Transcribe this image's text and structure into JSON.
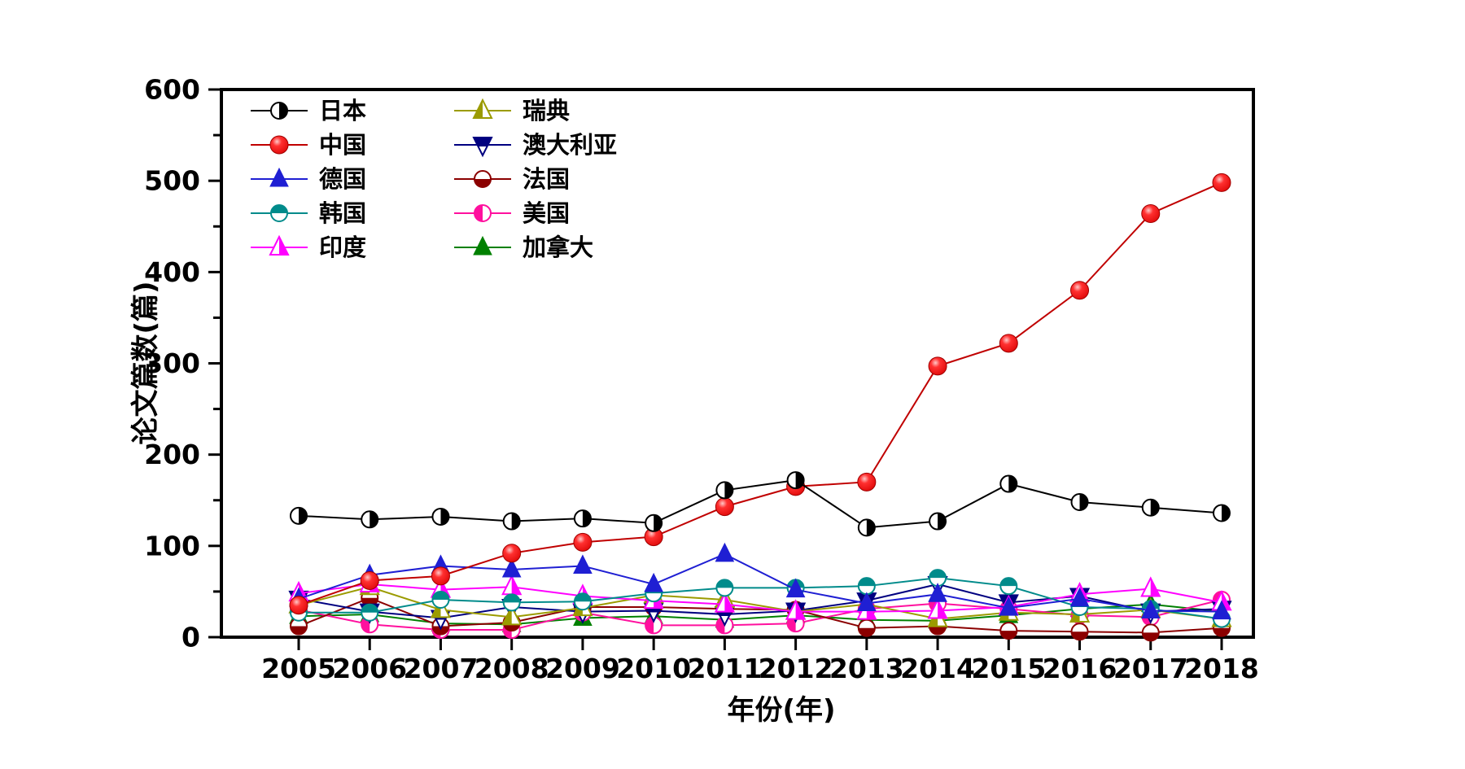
{
  "chart_data": {
    "type": "line",
    "title": "",
    "xlabel": "年份(年)",
    "ylabel": "论文篇数(篇)",
    "x_years": [
      2005,
      2006,
      2007,
      2008,
      2009,
      2010,
      2011,
      2012,
      2013,
      2014,
      2015,
      2016,
      2017,
      2018
    ],
    "y_ticks": [
      0,
      100,
      200,
      300,
      400,
      500,
      600
    ],
    "y_minor_step": 50,
    "ylim": [
      0,
      600
    ],
    "grid": false,
    "legend_position": "top-left-inside, two columns, no frame",
    "series": [
      {
        "name": "日本",
        "key": "japan",
        "marker": "circle-right-half",
        "line_color": "#000000",
        "fill_color": "#000000",
        "values": [
          133,
          129,
          132,
          127,
          130,
          125,
          161,
          172,
          120,
          127,
          168,
          148,
          142,
          136
        ]
      },
      {
        "name": "中国",
        "key": "china",
        "marker": "sphere-filled-circle",
        "line_color": "#c00000",
        "fill_color": "#ff0000",
        "values": [
          35,
          62,
          67,
          92,
          104,
          110,
          143,
          165,
          170,
          297,
          322,
          380,
          464,
          498
        ]
      },
      {
        "name": "德国",
        "key": "germany",
        "marker": "triangle-up-filled",
        "line_color": "#1f1fd3",
        "fill_color": "#1f1fd3",
        "values": [
          42,
          68,
          78,
          74,
          78,
          58,
          91,
          52,
          37,
          47,
          32,
          42,
          29,
          28
        ]
      },
      {
        "name": "韩国",
        "key": "korea",
        "marker": "circle-top-half",
        "line_color": "#008b8b",
        "fill_color": "#008b8b",
        "values": [
          27,
          27,
          41,
          38,
          39,
          48,
          54,
          54,
          56,
          65,
          56,
          33,
          31,
          20
        ]
      },
      {
        "name": "印度",
        "key": "india",
        "marker": "triangle-right-half",
        "line_color": "#ff00ff",
        "fill_color": "#ff00ff",
        "values": [
          48,
          58,
          52,
          55,
          45,
          40,
          36,
          28,
          28,
          29,
          33,
          47,
          53,
          38
        ]
      },
      {
        "name": "瑞典",
        "key": "sweden",
        "marker": "triangle-left-half",
        "line_color": "#9b9b00",
        "fill_color": "#9b9b00",
        "values": [
          35,
          55,
          30,
          22,
          32,
          46,
          41,
          28,
          36,
          20,
          27,
          25,
          30,
          20
        ]
      },
      {
        "name": "澳大利亚",
        "key": "australia",
        "marker": "triangle-down-top-half",
        "line_color": "#000080",
        "fill_color": "#000080",
        "values": [
          42,
          28,
          21,
          33,
          28,
          29,
          25,
          29,
          40,
          58,
          38,
          45,
          28,
          31
        ]
      },
      {
        "name": "法国",
        "key": "france",
        "marker": "circle-bottom-half",
        "line_color": "#8b0000",
        "fill_color": "#8b0000",
        "values": [
          12,
          43,
          12,
          16,
          33,
          33,
          31,
          30,
          10,
          12,
          7,
          6,
          5,
          10
        ]
      },
      {
        "name": "美国",
        "key": "usa",
        "marker": "circle-left-half",
        "line_color": "#ff109e",
        "fill_color": "#ff109e",
        "values": [
          30,
          14,
          8,
          8,
          27,
          13,
          13,
          15,
          31,
          37,
          31,
          24,
          22,
          41
        ]
      },
      {
        "name": "加拿大",
        "key": "canada",
        "marker": "triangle-up-filled",
        "line_color": "#008000",
        "fill_color": "#008000",
        "values": [
          23,
          25,
          15,
          14,
          21,
          23,
          19,
          24,
          19,
          18,
          24,
          31,
          36,
          28
        ]
      }
    ],
    "legend_columns": [
      [
        "japan",
        "china",
        "germany",
        "korea",
        "india"
      ],
      [
        "sweden",
        "australia",
        "france",
        "usa",
        "canada"
      ]
    ],
    "frame_color": "#000000",
    "background_color": "#ffffff"
  }
}
